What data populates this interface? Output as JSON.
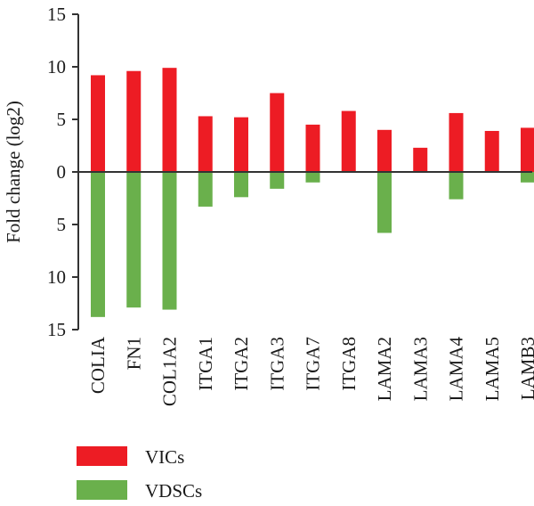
{
  "chart_data": {
    "type": "bar",
    "ylabel": "Fold change (log2)",
    "ylim": [
      -15,
      15
    ],
    "y_ticks": [
      15,
      10,
      5,
      0,
      -5,
      -10,
      -15
    ],
    "y_tick_labels": [
      "15",
      "10",
      "5",
      "0",
      "5",
      "10",
      "15"
    ],
    "categories": [
      "COLIA",
      "FN1",
      "COL1A2",
      "ITGA1",
      "ITGA2",
      "ITGA3",
      "ITGA7",
      "ITGA8",
      "LAMA2",
      "LAMA3",
      "LAMA4",
      "LAMA5",
      "LAMB3"
    ],
    "series": [
      {
        "name": "VICs",
        "color": "#ed1c24",
        "values": [
          9.2,
          9.6,
          9.9,
          5.3,
          5.2,
          7.5,
          4.5,
          5.8,
          4.0,
          2.3,
          5.6,
          3.9,
          4.2
        ]
      },
      {
        "name": "VDSCs",
        "color": "#6ab04c",
        "values": [
          -13.8,
          -12.9,
          -13.1,
          -3.3,
          -2.4,
          -1.6,
          -1.0,
          0,
          -5.8,
          0,
          -2.6,
          0,
          -1.0
        ]
      }
    ],
    "legend_position": "bottom-left",
    "grid": false
  }
}
